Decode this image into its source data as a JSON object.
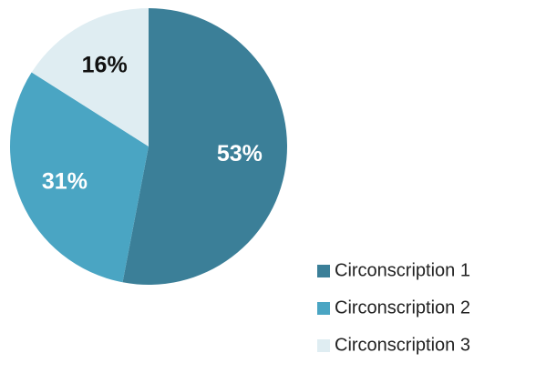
{
  "chart_data": {
    "type": "pie",
    "categories": [
      "Circonscription 1",
      "Circonscription 2",
      "Circonscription 3"
    ],
    "values": [
      53,
      31,
      16
    ],
    "value_labels": [
      "53%",
      "31%",
      "16%"
    ],
    "colors": [
      "#3b7f98",
      "#4aa5c3",
      "#dfedf2"
    ],
    "label_colors": [
      "#ffffff",
      "#ffffff",
      "#111111"
    ],
    "legend": "bottom-right"
  }
}
